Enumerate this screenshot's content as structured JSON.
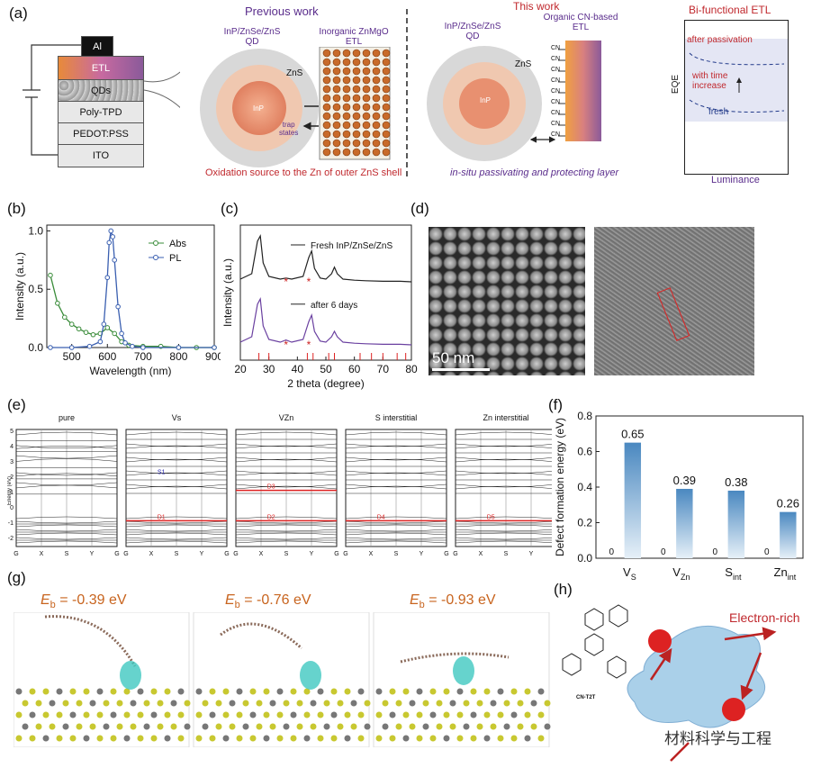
{
  "panel_labels": {
    "a": "(a)",
    "b": "(b)",
    "c": "(c)",
    "d": "(d)",
    "e": "(e)",
    "f": "(f)",
    "g": "(g)",
    "h": "(h)"
  },
  "a": {
    "device_layers": [
      "Al",
      "ETL",
      "QDs",
      "Poly-TPD",
      "PEDOT:PSS",
      "ITO"
    ],
    "previous_title": "Previous work",
    "prev_qd_label": "InP/ZnSe/ZnS\nQD",
    "prev_etl_label": "Inorganic ZnMgO\nETL",
    "zns": "ZnS",
    "inp": "InP",
    "trap_states": "trap\nstates",
    "prev_caption": "Oxidation source to the Zn of outer ZnS shell",
    "this_title": "This work",
    "this_qd_label": "InP/ZnSe/ZnS\nQD",
    "this_etl_label": "Organic CN-based\nETL",
    "cn": "CN",
    "this_caption": "in-situ passivating and protecting layer",
    "bi_title": "Bi-functional ETL",
    "after_passivation": "after passivation",
    "with_time": "with time\nincrease",
    "fresh": "fresh",
    "eqe": "EQE",
    "luminance": "Luminance"
  },
  "chart_data": [
    {
      "id": "b",
      "type": "line",
      "xlabel": "Wavelength (nm)",
      "ylabel": "Intensity (a.u.)",
      "xlim": [
        430,
        900
      ],
      "ylim": [
        0,
        1.05
      ],
      "xticks": [
        500,
        600,
        700,
        800,
        900
      ],
      "yticks": [
        0.0,
        0.5,
        1.0
      ],
      "legend_position": "top-right",
      "series": [
        {
          "name": "Abs",
          "color": "#3a8c3a",
          "x": [
            440,
            460,
            480,
            500,
            520,
            540,
            560,
            580,
            600,
            620,
            640,
            660,
            700,
            750,
            800,
            850,
            900
          ],
          "y": [
            0.62,
            0.38,
            0.26,
            0.2,
            0.16,
            0.13,
            0.11,
            0.12,
            0.17,
            0.12,
            0.05,
            0.02,
            0.01,
            0.01,
            0.0,
            0.0,
            0.0
          ]
        },
        {
          "name": "PL",
          "color": "#3a5fb0",
          "x": [
            440,
            500,
            550,
            580,
            590,
            600,
            605,
            610,
            615,
            620,
            630,
            640,
            650,
            670,
            700,
            800,
            900
          ],
          "y": [
            0,
            0,
            0.01,
            0.05,
            0.2,
            0.6,
            0.9,
            1.0,
            0.95,
            0.75,
            0.35,
            0.12,
            0.04,
            0.01,
            0,
            0,
            0
          ]
        }
      ]
    },
    {
      "id": "c",
      "type": "line",
      "xlabel": "2 theta (degree)",
      "ylabel": "Intensity (a.u.)",
      "xlim": [
        20,
        80
      ],
      "xticks": [
        20,
        30,
        40,
        50,
        60,
        70,
        80
      ],
      "legend_position": "top-right",
      "series": [
        {
          "name": "Fresh InP/ZnSe/ZnS",
          "x": [
            20,
            24,
            26,
            27,
            28,
            30,
            34,
            36,
            38,
            42,
            44,
            45,
            46,
            48,
            50,
            52,
            53,
            54,
            56,
            60,
            64,
            70,
            76,
            80
          ],
          "y": [
            0.2,
            0.3,
            0.9,
            1.0,
            0.5,
            0.25,
            0.2,
            0.22,
            0.2,
            0.25,
            0.6,
            0.72,
            0.4,
            0.22,
            0.2,
            0.3,
            0.42,
            0.3,
            0.2,
            0.18,
            0.17,
            0.16,
            0.16,
            0.15
          ]
        },
        {
          "name": "after 6 days",
          "x": [
            20,
            24,
            26,
            27,
            28,
            30,
            34,
            36,
            38,
            42,
            44,
            45,
            46,
            48,
            50,
            52,
            53,
            54,
            56,
            60,
            64,
            70,
            76,
            80
          ],
          "y": [
            0.2,
            0.3,
            0.9,
            1.0,
            0.5,
            0.25,
            0.2,
            0.24,
            0.2,
            0.25,
            0.58,
            0.7,
            0.4,
            0.22,
            0.2,
            0.3,
            0.4,
            0.3,
            0.2,
            0.18,
            0.17,
            0.16,
            0.16,
            0.15
          ]
        }
      ]
    },
    {
      "id": "f",
      "type": "bar",
      "ylabel": "Defect formation energy (eV)",
      "ylim": [
        0,
        0.8
      ],
      "yticks": [
        0.0,
        0.2,
        0.4,
        0.6,
        0.8
      ],
      "categories": [
        "VS",
        "VZn",
        "Sint",
        "Znint"
      ],
      "category_main": [
        "V",
        "V",
        "S",
        "Zn"
      ],
      "category_sub": [
        "S",
        "Zn",
        "int",
        "int"
      ],
      "values": [
        0.65,
        0.39,
        0.38,
        0.26
      ],
      "value_labels": [
        "0.65",
        "0.39",
        "0.38",
        "0.26"
      ],
      "zero_labels": [
        "0",
        "0",
        "0",
        "0"
      ]
    }
  ],
  "d": {
    "scale_bar": "50 nm"
  },
  "e": {
    "titles": [
      "pure",
      "Vs",
      "VZn",
      "S interstitial",
      "Zn interstitial"
    ],
    "title_sub": [
      "",
      "S",
      "Zn",
      "",
      ""
    ],
    "ylabel": "Energy (eV)",
    "kpoints": [
      "G",
      "X",
      "S",
      "Y",
      "G"
    ],
    "yticks": [
      "5",
      "4",
      "3",
      "2",
      "1",
      "0",
      "-1",
      "-2"
    ],
    "defect_levels": [
      "S1",
      "D1",
      "D3",
      "D2",
      "D4",
      "D5"
    ]
  },
  "g": {
    "labels": [
      {
        "prefix": "E",
        "sub": "b",
        "value": " = -0.39 eV"
      },
      {
        "prefix": "E",
        "sub": "b",
        "value": " = -0.76 eV"
      },
      {
        "prefix": "E",
        "sub": "b",
        "value": " = -0.93 eV"
      }
    ]
  },
  "h": {
    "electron_rich": "Electron-rich",
    "molecule": "CN-T2T",
    "watermark": "材料科学与工程"
  }
}
